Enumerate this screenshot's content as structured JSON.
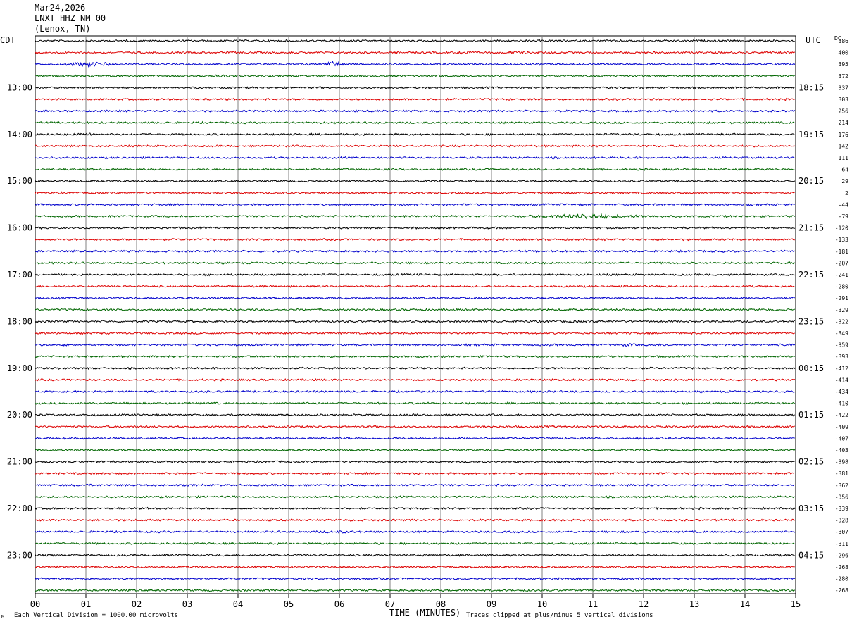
{
  "header": {
    "date": "Mar24,2026",
    "station": "LNXT HHZ NM 00",
    "location": "(Lenox, TN)"
  },
  "labels": {
    "left_zone": "CDT",
    "right_zone": "UTC",
    "dc_header": "DC",
    "xlabel": "TIME (MINUTES)",
    "vertical_division": "Each Vertical Division = 1000.00 microvolts",
    "clip_note": "Traces clipped at plus/minus 5 vertical divisions",
    "corner_mark": "M"
  },
  "colors": {
    "trace_cycle": [
      "#000000",
      "#dd0000",
      "#0000cc",
      "#006600"
    ],
    "grid": "#808080"
  },
  "chart_data": {
    "type": "line",
    "x_ticks": [
      "00",
      "01",
      "02",
      "03",
      "04",
      "05",
      "06",
      "07",
      "08",
      "09",
      "10",
      "11",
      "12",
      "13",
      "14",
      "15"
    ],
    "xlim": [
      0,
      15
    ],
    "trace_count": 48,
    "minutes_per_trace": 15,
    "left_hour_labels": [
      "13:00",
      "14:00",
      "15:00",
      "16:00",
      "17:00",
      "18:00",
      "19:00",
      "20:00",
      "21:00",
      "22:00",
      "23:00"
    ],
    "right_hour_labels": [
      "18:15",
      "19:15",
      "20:15",
      "21:15",
      "22:15",
      "23:15",
      "00:15",
      "01:15",
      "02:15",
      "03:15",
      "04:15"
    ],
    "hour_label_first_trace": 4,
    "dc_offsets": [
      "386",
      "400",
      "395",
      "372",
      "337",
      "303",
      "256",
      "214",
      "176",
      "142",
      "111",
      "64",
      "29",
      "2",
      "-44",
      "-79",
      "-120",
      "-133",
      "-181",
      "-207",
      "-241",
      "-280",
      "-291",
      "-329",
      "-322",
      "-349",
      "-359",
      "-393",
      "-412",
      "-414",
      "-434",
      "-410",
      "-422",
      "-409",
      "-407",
      "-403",
      "-398",
      "-381",
      "-362",
      "-356",
      "-339",
      "-328",
      "-307",
      "-311",
      "-296",
      "-268",
      "-280",
      "-268"
    ],
    "events": [
      {
        "trace": 1,
        "start_min": 8.3,
        "end_min": 8.6,
        "amp": 3.2
      },
      {
        "trace": 1,
        "start_min": 8.6,
        "end_min": 10.5,
        "amp": 1.3
      },
      {
        "trace": 2,
        "start_min": 0.6,
        "end_min": 1.6,
        "amp": 3.0
      },
      {
        "trace": 2,
        "start_min": 5.6,
        "end_min": 6.1,
        "amp": 3.6
      },
      {
        "trace": 3,
        "start_min": 3.0,
        "end_min": 4.5,
        "amp": 1.4
      },
      {
        "trace": 4,
        "start_min": 6.9,
        "end_min": 7.0,
        "amp": 2.0
      },
      {
        "trace": 8,
        "start_min": 0.7,
        "end_min": 1.3,
        "amp": 1.8
      },
      {
        "trace": 15,
        "start_min": 9.3,
        "end_min": 12.4,
        "amp": 2.2
      },
      {
        "trace": 15,
        "start_min": 10.2,
        "end_min": 11.6,
        "amp": 3.4
      },
      {
        "trace": 19,
        "start_min": 6.6,
        "end_min": 6.7,
        "amp": 2.0
      },
      {
        "trace": 23,
        "start_min": 2.2,
        "end_min": 2.4,
        "amp": 1.6
      },
      {
        "trace": 24,
        "start_min": 9.0,
        "end_min": 12.5,
        "amp": 1.2
      },
      {
        "trace": 26,
        "start_min": 11.5,
        "end_min": 11.9,
        "amp": 1.8
      },
      {
        "trace": 26,
        "start_min": 12.3,
        "end_min": 12.6,
        "amp": 1.5
      },
      {
        "trace": 38,
        "start_min": 0.8,
        "end_min": 1.2,
        "amp": 1.4
      },
      {
        "trace": 42,
        "start_min": 5.0,
        "end_min": 7.0,
        "amp": 1.3
      }
    ]
  }
}
